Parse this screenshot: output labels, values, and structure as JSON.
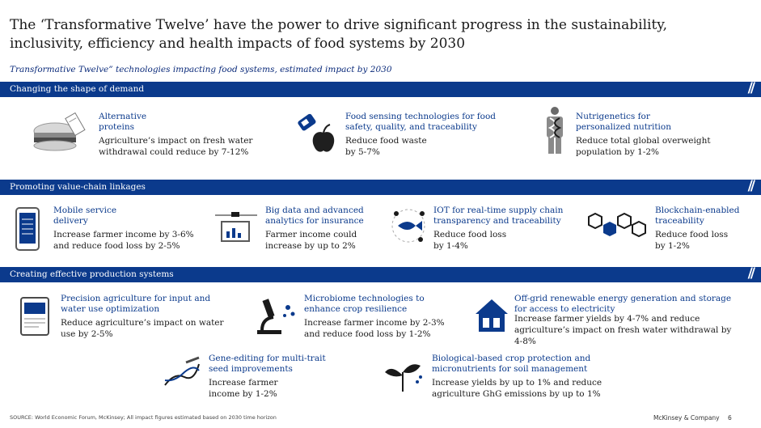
{
  "title": "The ‘Transformative Twelve’ have the power to drive significant progress in the sustainability, inclusivity, efficiency and health impacts of food systems by 2030",
  "subtitle": "Transformative Twelve” technologies impacting food systems, estimated impact by 2030",
  "sections": {
    "demand": {
      "label": "Changing the shape of demand",
      "items": [
        {
          "heading": "Alternative proteins",
          "detail": "Agriculture’s impact on fresh water withdrawal could reduce by 7-12%"
        },
        {
          "heading": "Food sensing technologies for food safety, quality, and traceability",
          "detail": "Reduce food waste by 5-7%"
        },
        {
          "heading": "Nutrigenetics for personalized nutrition",
          "detail": "Reduce total global overweight population by 1-2%"
        }
      ]
    },
    "value_chain": {
      "label": "Promoting value-chain linkages",
      "items": [
        {
          "heading": "Mobile service delivery",
          "detail": "Increase farmer income by 3-6% and reduce food loss by 2-5%"
        },
        {
          "heading": "Big data and advanced analytics for insurance",
          "detail": "Farmer income could increase by up to 2%"
        },
        {
          "heading": "IOT for real-time supply chain transparency and traceability",
          "detail": "Reduce food loss by 1-4%"
        },
        {
          "heading": "Blockchain-enabled traceability",
          "detail": "Reduce food loss by 1-2%"
        }
      ]
    },
    "production": {
      "label": "Creating effective production systems",
      "items": [
        {
          "heading": "Precision agriculture for input and water use optimization",
          "detail": "Reduce agriculture’s impact on water use by 2-5%"
        },
        {
          "heading": "Microbiome technologies to enhance crop resilience",
          "detail": "Increase farmer income by 2-3% and reduce food loss by 1-2%"
        },
        {
          "heading": "Off-grid renewable energy generation and storage for access to electricity",
          "detail": "Increase farmer yields by 4-7% and reduce agriculture’s impact on fresh water withdrawal by 4-8%"
        },
        {
          "heading": "Gene-editing for multi-trait seed improvements",
          "detail": "Increase farmer income by 1-2%"
        },
        {
          "heading": "Biological-based crop protection and micronutrients for soil management",
          "detail": "Increase yields by up to 1% and reduce agriculture GhG emissions by up to 1%"
        }
      ]
    }
  },
  "footer": {
    "source": "SOURCE: World Economic Forum, McKinsey; All impact figures estimated based on 2030 time horizon",
    "brand": "McKinsey & Company",
    "page": "6"
  },
  "colors": {
    "accent": "#0b3a8c",
    "text": "#1a1a1a"
  }
}
